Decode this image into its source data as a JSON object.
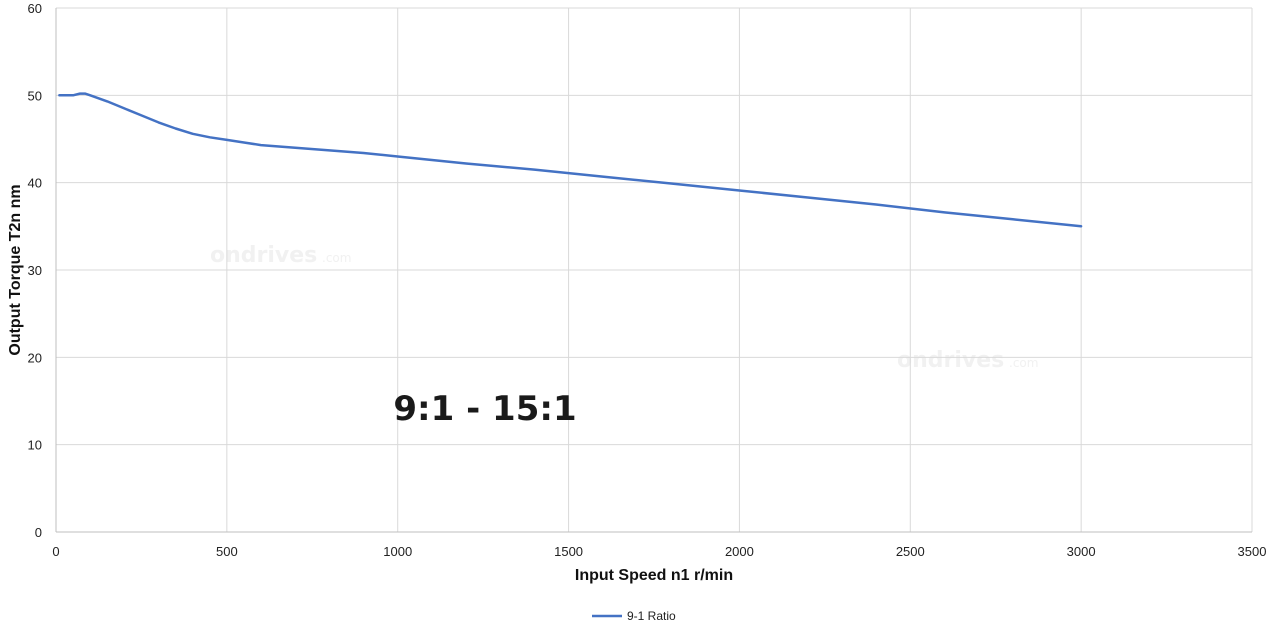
{
  "chart_data": {
    "type": "line",
    "xlabel": "Input Speed n1 r/min",
    "ylabel": "Output Torque T2n nm",
    "xlim": [
      0,
      3500
    ],
    "ylim": [
      0,
      60
    ],
    "x_ticks": [
      0,
      500,
      1000,
      1500,
      2000,
      2500,
      3000,
      3500
    ],
    "y_ticks": [
      0,
      10,
      20,
      30,
      40,
      50,
      60
    ],
    "grid": true,
    "legend_position": "bottom-center",
    "annotation": "9:1 - 15:1",
    "watermark": {
      "brand": "ondrives",
      "suffix": ".com"
    },
    "series": [
      {
        "name": "9-1 Ratio",
        "color": "#4472C4",
        "x": [
          10,
          30,
          50,
          70,
          85,
          100,
          150,
          200,
          250,
          300,
          350,
          400,
          450,
          500,
          550,
          600,
          700,
          800,
          900,
          1000,
          1200,
          1400,
          1600,
          1800,
          2000,
          2200,
          2400,
          2600,
          2800,
          3000
        ],
        "y": [
          50,
          50,
          50,
          50.2,
          50.2,
          50,
          49.3,
          48.5,
          47.7,
          46.9,
          46.2,
          45.6,
          45.2,
          44.9,
          44.6,
          44.3,
          44.0,
          43.7,
          43.4,
          43.0,
          42.2,
          41.5,
          40.7,
          39.9,
          39.1,
          38.3,
          37.5,
          36.6,
          35.8,
          35.0
        ]
      }
    ]
  }
}
